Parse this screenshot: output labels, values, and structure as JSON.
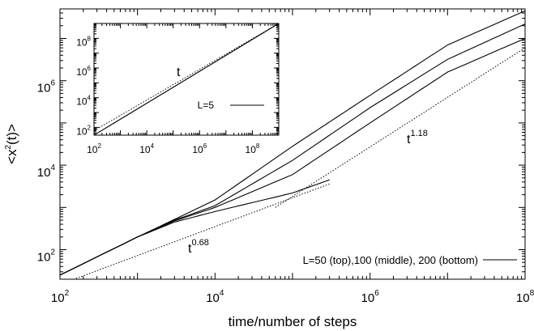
{
  "chart_data": [
    {
      "type": "line",
      "title": "",
      "xlabel": "time/number of steps",
      "ylabel": "<x2(t)>",
      "xscale": "log",
      "yscale": "log",
      "xlim": [
        100,
        100000000
      ],
      "ylim": [
        20,
        50000000
      ],
      "grid": false,
      "x_ticks": [
        {
          "base": "10",
          "exp": "2"
        },
        {
          "base": "10",
          "exp": "4"
        },
        {
          "base": "10",
          "exp": "6"
        },
        {
          "base": "10",
          "exp": "8"
        }
      ],
      "y_ticks": [
        {
          "value": 100,
          "base": "10",
          "exp": "2"
        },
        {
          "value": 10000,
          "base": "10",
          "exp": "4"
        },
        {
          "value": 1000000,
          "base": "10",
          "exp": "6"
        }
      ],
      "legend": {
        "position": "bottom-right",
        "label": "L=50 (top),100 (middle), 200 (bottom)"
      },
      "annotations": [
        {
          "base": "t",
          "exp": "0.68"
        },
        {
          "base": "t",
          "exp": "1.18"
        }
      ],
      "series": [
        {
          "style": "solid",
          "x": [
            100,
            1000,
            3000,
            10000,
            100000,
            1000000,
            10000000,
            100000000
          ],
          "y": [
            25,
            200,
            520,
            1500,
            28000,
            450000,
            7000000,
            45000000
          ]
        },
        {
          "style": "solid",
          "x": [
            100,
            1000,
            3000,
            10000,
            100000,
            1000000,
            10000000,
            100000000
          ],
          "y": [
            25,
            200,
            500,
            1100,
            13000,
            230000,
            3200000,
            22000000
          ]
        },
        {
          "style": "solid",
          "x": [
            100,
            1000,
            3000,
            10000,
            100000,
            1000000,
            10000000,
            100000000
          ],
          "y": [
            25,
            200,
            480,
            1000,
            6000,
            100000,
            1600000,
            10000000
          ]
        },
        {
          "style": "solid",
          "x": [
            100,
            1000,
            3000,
            10000,
            100000,
            300000
          ],
          "y": [
            25,
            200,
            450,
            800,
            2200,
            4500
          ]
        },
        {
          "style": "dotted",
          "x": [
            100,
            300000
          ],
          "y": [
            15,
            3600
          ]
        },
        {
          "style": "dotted",
          "x": [
            60000,
            100000000
          ],
          "y": [
            1000,
            6000000
          ]
        }
      ]
    },
    {
      "type": "line",
      "title": "",
      "xscale": "log",
      "yscale": "log",
      "xlim": [
        100,
        1000000000
      ],
      "ylim": [
        30,
        1000000000
      ],
      "grid": false,
      "x_ticks": [
        {
          "base": "10",
          "exp": "2"
        },
        {
          "base": "10",
          "exp": "4"
        },
        {
          "base": "10",
          "exp": "6"
        },
        {
          "base": "10",
          "exp": "8"
        }
      ],
      "y_ticks": [
        {
          "value": 100,
          "base": "10",
          "exp": "2"
        },
        {
          "value": 10000,
          "base": "10",
          "exp": "4"
        },
        {
          "value": 1000000,
          "base": "10",
          "exp": "6"
        },
        {
          "value": 100000000,
          "base": "10",
          "exp": "8"
        }
      ],
      "legend": {
        "position": "bottom-right",
        "label": "L=5"
      },
      "annotations": [
        {
          "text": "t"
        }
      ],
      "series": [
        {
          "style": "solid",
          "x": [
            100,
            1000000000
          ],
          "y": [
            30,
            1000000000
          ]
        },
        {
          "style": "dotted",
          "x": [
            100,
            1000000000
          ],
          "y": [
            60,
            1000000000
          ]
        }
      ]
    }
  ]
}
